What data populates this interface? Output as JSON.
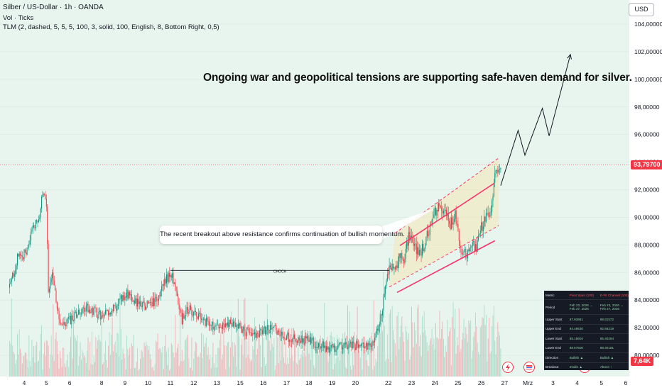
{
  "header": {
    "title": "Silber / US-Dollar · 1h · OANDA",
    "vol": "Vol · Ticks",
    "tlm": "TLM (2, dashed, 5, 5, 5, 100, 3, solid, 100, English, 8, Bottom Right, 0,5)"
  },
  "headline": "Ongoing war and geopolitical tensions are supporting safe-haven demand for silver.",
  "callout": "The recent breakout above resistance confirms continuation of bullish momentum.",
  "choch_label": "CHOCH",
  "currency_button": "USD",
  "price_tag": "93,79700",
  "volume_tag": "7,64K",
  "colors": {
    "up": "#089981",
    "down": "#f23645",
    "channel": "#f7346b",
    "arrow": "#131722"
  },
  "chart_data": {
    "type": "candlestick",
    "y_ticks": [
      "104,00000",
      "102,00000",
      "100,00000",
      "98,00000",
      "96,00000",
      "94,00000",
      "92,00000",
      "90,00000",
      "88,00000",
      "86,00000",
      "84,00000",
      "82,00000",
      "80,00000"
    ],
    "y_tick_values": [
      104,
      102,
      100,
      98,
      96,
      94,
      92,
      90,
      88,
      86,
      84,
      82,
      80
    ],
    "x_ticks": [
      "4",
      "5",
      "6",
      "8",
      "9",
      "10",
      "11",
      "12",
      "13",
      "15",
      "16",
      "17",
      "18",
      "19",
      "20",
      "22",
      "23",
      "24",
      "25",
      "26",
      "27",
      "Mrz",
      "3",
      "4",
      "5",
      "6"
    ],
    "x_tick_index": [
      15,
      38,
      62,
      95,
      119,
      143,
      166,
      190,
      214,
      238,
      262,
      286,
      309,
      333,
      357,
      391,
      415,
      439,
      463,
      487,
      511,
      535,
      561,
      586,
      611,
      636
    ],
    "ylim": [
      79.0,
      105.5
    ],
    "current_price": 93.797,
    "choch": {
      "from_index": 166,
      "to_index": 392,
      "price": 86.15
    },
    "channel": {
      "lower": [
        [
          400,
          84.55
        ],
        [
          501,
          88.3
        ]
      ],
      "upper": [
        [
          403,
          87.95
        ],
        [
          500,
          92.45
        ]
      ],
      "upper_dashed": [
        [
          398,
          88.85
        ],
        [
          505,
          94.3
        ]
      ],
      "lower_dashed": [
        [
          392,
          84.95
        ],
        [
          505,
          89.4
        ]
      ]
    },
    "projection": [
      [
        507,
        92.3
      ],
      [
        525,
        96.3
      ],
      [
        532,
        94.5
      ],
      [
        550,
        97.9
      ],
      [
        557,
        95.9
      ],
      [
        579,
        101.8
      ]
    ],
    "candles_ohlc_sample": [
      {
        "t": 0,
        "o": 84.9,
        "h": 85.6,
        "l": 84.2,
        "c": 85.3
      },
      {
        "t": 25,
        "o": 88.4,
        "h": 89.9,
        "l": 88.0,
        "c": 89.5
      },
      {
        "t": 34,
        "o": 90.5,
        "h": 92.3,
        "l": 90.0,
        "c": 91.8
      },
      {
        "t": 40,
        "o": 86.8,
        "h": 87.4,
        "l": 83.9,
        "c": 84.5
      },
      {
        "t": 52,
        "o": 83.5,
        "h": 84.1,
        "l": 81.4,
        "c": 81.9
      },
      {
        "t": 120,
        "o": 84.1,
        "h": 84.8,
        "l": 83.2,
        "c": 84.6
      },
      {
        "t": 166,
        "o": 85.0,
        "h": 86.3,
        "l": 84.6,
        "c": 86.1
      },
      {
        "t": 250,
        "o": 81.2,
        "h": 81.9,
        "l": 80.5,
        "c": 81.6
      },
      {
        "t": 330,
        "o": 80.6,
        "h": 81.2,
        "l": 79.9,
        "c": 80.3
      },
      {
        "t": 385,
        "o": 83.0,
        "h": 84.5,
        "l": 82.6,
        "c": 84.2
      },
      {
        "t": 405,
        "o": 87.2,
        "h": 88.4,
        "l": 86.4,
        "c": 88.0
      },
      {
        "t": 440,
        "o": 89.8,
        "h": 91.3,
        "l": 89.5,
        "c": 91.0
      },
      {
        "t": 470,
        "o": 88.2,
        "h": 88.7,
        "l": 86.3,
        "c": 86.8
      },
      {
        "t": 495,
        "o": 89.9,
        "h": 92.5,
        "l": 89.6,
        "c": 92.2
      },
      {
        "t": 504,
        "o": 93.2,
        "h": 94.1,
        "l": 92.9,
        "c": 93.8
      }
    ]
  },
  "table": {
    "headers": [
      "Metric",
      "Pivot Span (100)",
      "E-Fit Channel (100)"
    ],
    "rows": [
      [
        "Period",
        "Feb 23, 2026 → Feb 27, 2026",
        "Feb 23, 2026 → Feb 27, 2026"
      ],
      [
        "Upper Start",
        "87.93951",
        "88.61572"
      ],
      [
        "Upper End",
        "94.48630",
        "92.66219"
      ],
      [
        "Lower Start",
        "85.15604",
        "85.40294"
      ],
      [
        "Lower End",
        "89.57600",
        "88.40191"
      ],
      [
        "Direction",
        "Bullish ▲",
        "Bullish ▲"
      ],
      [
        "Breakout",
        "Inside ▲",
        "Above ↑"
      ]
    ]
  }
}
